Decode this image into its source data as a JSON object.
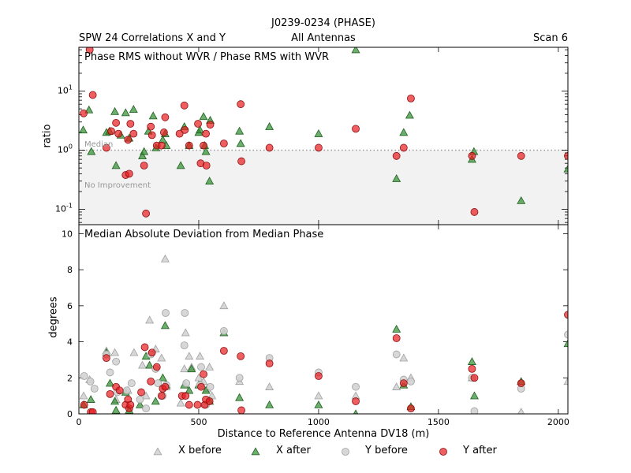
{
  "header": {
    "title": "J0239-0234 (PHASE)",
    "subtitle_left": "SPW 24 Correlations X and Y",
    "subtitle_center": "All Antennas",
    "subtitle_right": "Scan 6"
  },
  "x_axis": {
    "label": "Distance to Reference Antenna DV18 (m)",
    "ticks": [
      "0",
      "500",
      "1000",
      "1500",
      "2000"
    ]
  },
  "legend": [
    "X before",
    "X after",
    "Y before",
    "Y after"
  ],
  "colors": {
    "x_before": "#d3d3d3",
    "x_after": "#2e8b2e",
    "y_before": "#d3d3d3",
    "y_after": "#e8191e",
    "median_line": "#999999",
    "shade": "#f2f2f2"
  },
  "chart_data": [
    {
      "type": "scatter",
      "title": "Phase RMS without WVR / Phase RMS with WVR",
      "ylabel": "ratio",
      "yscale": "log",
      "xlim": [
        0,
        2040
      ],
      "ylim": [
        0.055,
        55
      ],
      "yticks": [
        "10^-1",
        "10^0",
        "10^1"
      ],
      "annotations": {
        "median": "Median",
        "shade": "No Improvement"
      },
      "median_value": 1.0,
      "series": [
        {
          "name": "X after",
          "marker": "triangle",
          "x": [
            18,
            42,
            52,
            115,
            128,
            150,
            155,
            175,
            195,
            210,
            228,
            265,
            272,
            290,
            310,
            322,
            350,
            360,
            365,
            425,
            440,
            460,
            500,
            505,
            520,
            525,
            530,
            545,
            548,
            670,
            675,
            795,
            1000,
            1155,
            1325,
            1355,
            1380,
            1640,
            1648,
            1845,
            2040
          ],
          "y": [
            2.2,
            4.8,
            0.95,
            2.0,
            2.1,
            4.5,
            0.55,
            1.8,
            4.3,
            1.6,
            4.9,
            0.8,
            0.95,
            2.1,
            3.8,
            1.1,
            1.5,
            1.9,
            1.2,
            0.55,
            2.5,
            1.2,
            2.0,
            2.2,
            3.7,
            1.2,
            0.95,
            0.3,
            3.2,
            2.1,
            1.3,
            2.5,
            1.9,
            50,
            0.33,
            2.0,
            3.9,
            0.7,
            0.95,
            0.14,
            0.48
          ]
        },
        {
          "name": "Y after",
          "marker": "circle",
          "x": [
            20,
            45,
            58,
            115,
            135,
            155,
            165,
            195,
            205,
            210,
            215,
            228,
            272,
            280,
            300,
            305,
            325,
            345,
            355,
            360,
            420,
            440,
            442,
            460,
            497,
            508,
            520,
            530,
            532,
            548,
            605,
            675,
            678,
            795,
            1000,
            1155,
            1325,
            1355,
            1385,
            1640,
            1650,
            1845,
            2040
          ],
          "y": [
            4.2,
            50,
            8.6,
            1.1,
            2.1,
            2.9,
            1.9,
            0.38,
            1.5,
            0.4,
            2.8,
            1.9,
            0.55,
            0.085,
            2.5,
            1.8,
            1.2,
            1.2,
            2.0,
            3.6,
            1.9,
            5.7,
            2.2,
            1.2,
            2.8,
            0.6,
            1.2,
            1.9,
            0.55,
            2.7,
            1.3,
            6.0,
            0.65,
            1.1,
            1.1,
            2.3,
            0.8,
            1.1,
            7.5,
            0.8,
            0.09,
            0.8,
            0.8
          ]
        }
      ]
    },
    {
      "type": "scatter",
      "title": "Median Absolute Deviation from Median Phase",
      "ylabel": "degrees",
      "xlim": [
        0,
        2040
      ],
      "ylim": [
        0,
        10.5
      ],
      "yticks": [
        "0",
        "2",
        "4",
        "6",
        "8",
        "10"
      ],
      "series": [
        {
          "name": "X before",
          "marker": "triangle",
          "x": [
            20,
            45,
            115,
            150,
            155,
            205,
            230,
            265,
            280,
            295,
            320,
            345,
            360,
            365,
            425,
            440,
            445,
            460,
            470,
            500,
            505,
            520,
            535,
            545,
            555,
            605,
            670,
            795,
            1000,
            1155,
            1325,
            1355,
            1385,
            1640,
            1845,
            2040
          ],
          "y": [
            1.0,
            1.9,
            3.5,
            3.4,
            0.8,
            1.3,
            3.4,
            2.7,
            1.0,
            5.2,
            3.6,
            3.1,
            8.6,
            1.5,
            0.6,
            2.5,
            4.5,
            3.2,
            2.6,
            2.0,
            3.2,
            1.8,
            1.4,
            2.6,
            1.0,
            6.0,
            1.8,
            1.5,
            1.0,
            1.0,
            1.5,
            3.1,
            2.0,
            2.0,
            0.1,
            1.8
          ]
        },
        {
          "name": "X after",
          "marker": "triangle",
          "x": [
            20,
            50,
            115,
            130,
            150,
            155,
            195,
            210,
            255,
            280,
            295,
            320,
            350,
            360,
            365,
            440,
            460,
            470,
            500,
            530,
            545,
            605,
            670,
            795,
            1000,
            1155,
            1325,
            1355,
            1385,
            1640,
            1650,
            1845,
            2040
          ],
          "y": [
            0.5,
            0.8,
            3.4,
            1.7,
            0.7,
            0.2,
            1.2,
            0.2,
            0.5,
            3.2,
            2.7,
            0.7,
            2.0,
            4.9,
            1.6,
            1.6,
            1.3,
            2.5,
            1.6,
            1.3,
            0.7,
            4.5,
            0.9,
            0.5,
            0.5,
            0.0,
            4.7,
            1.6,
            0.4,
            2.9,
            1.0,
            1.8,
            3.9
          ]
        },
        {
          "name": "Y before",
          "marker": "circle",
          "x": [
            22,
            48,
            65,
            115,
            130,
            155,
            160,
            200,
            220,
            255,
            280,
            300,
            320,
            330,
            350,
            362,
            365,
            440,
            442,
            448,
            505,
            510,
            530,
            548,
            605,
            670,
            795,
            1000,
            1155,
            1325,
            1355,
            1385,
            1640,
            1650,
            1845,
            2040
          ],
          "y": [
            2.1,
            1.8,
            1.4,
            3.3,
            2.3,
            2.9,
            1.2,
            1.3,
            1.7,
            0.8,
            0.3,
            3.3,
            2.5,
            1.7,
            1.0,
            5.6,
            1.6,
            3.8,
            5.6,
            1.7,
            1.6,
            2.6,
            0.5,
            1.5,
            4.6,
            2.0,
            3.1,
            2.3,
            1.5,
            3.3,
            1.9,
            1.8,
            2.0,
            0.15,
            1.4,
            4.4
          ]
        },
        {
          "name": "Y after",
          "marker": "circle",
          "x": [
            22,
            50,
            58,
            115,
            130,
            155,
            170,
            195,
            205,
            210,
            215,
            260,
            275,
            300,
            305,
            325,
            345,
            350,
            360,
            430,
            445,
            460,
            495,
            510,
            520,
            525,
            530,
            545,
            605,
            675,
            678,
            795,
            1000,
            1155,
            1325,
            1355,
            1385,
            1640,
            1650,
            1845,
            2040
          ],
          "y": [
            0.5,
            0.1,
            0.1,
            3.1,
            1.1,
            1.5,
            1.3,
            0.5,
            0.8,
            0.3,
            0.5,
            1.2,
            3.7,
            1.8,
            3.4,
            2.6,
            1.0,
            1.4,
            1.5,
            1.0,
            1.0,
            0.5,
            0.5,
            1.5,
            2.2,
            0.5,
            0.8,
            0.7,
            3.5,
            3.2,
            0.2,
            2.8,
            2.1,
            0.7,
            4.2,
            1.7,
            0.3,
            2.5,
            2.0,
            1.7,
            5.5
          ]
        }
      ]
    }
  ]
}
